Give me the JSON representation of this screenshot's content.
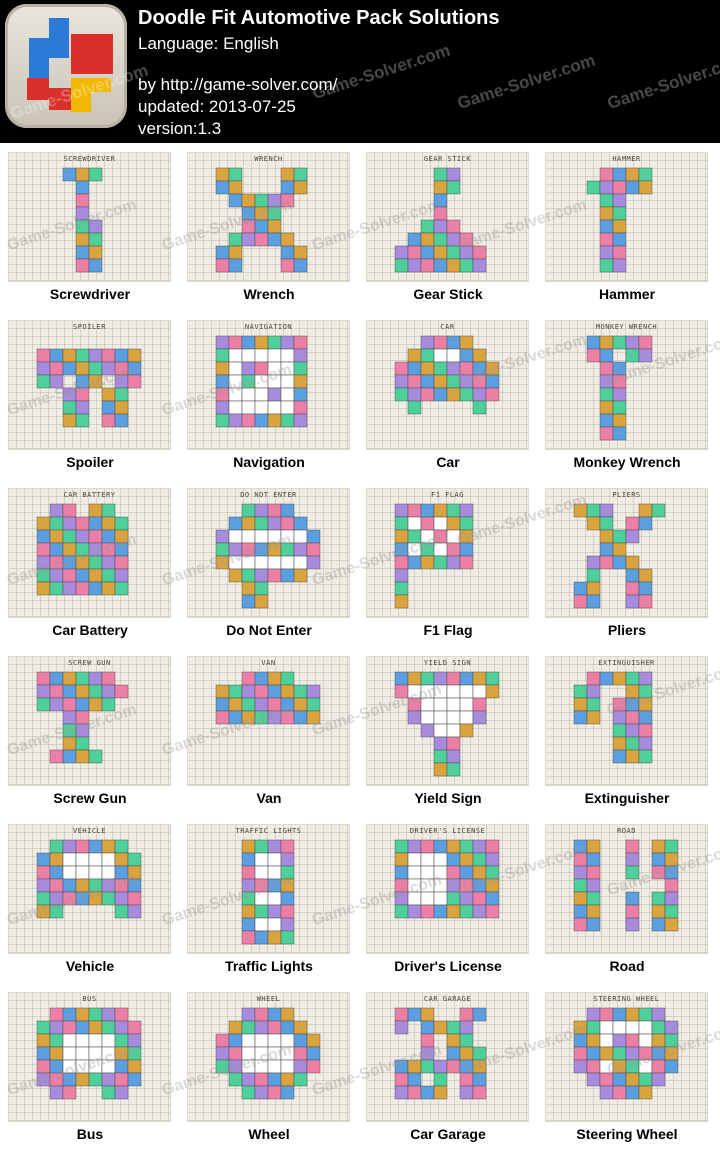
{
  "header": {
    "title": "Doodle Fit Automotive Pack Solutions",
    "language": "Language: English",
    "by": "by http://game-solver.com/",
    "updated": "updated: 2013-07-25",
    "version": "version:1.3",
    "watermark": "Game-Solver.com"
  },
  "colors": {
    "purple": "#a78bdc",
    "orange": "#d9a33f",
    "pink": "#ec7fa6",
    "green": "#4fcf9a",
    "blue": "#5b9fe0",
    "paper": "#efece3",
    "hole": "#ffffff"
  },
  "puzzles": [
    {
      "label": "Screwdriver",
      "inner_title": "SCREWDRIVER"
    },
    {
      "label": "Wrench",
      "inner_title": "WRENCH"
    },
    {
      "label": "Gear Stick",
      "inner_title": "GEAR STICK"
    },
    {
      "label": "Hammer",
      "inner_title": "HAMMER"
    },
    {
      "label": "Spoiler",
      "inner_title": "SPOILER"
    },
    {
      "label": "Navigation",
      "inner_title": "NAVIGATION"
    },
    {
      "label": "Car",
      "inner_title": "CAR"
    },
    {
      "label": "Monkey Wrench",
      "inner_title": "MONKEY WRENCH"
    },
    {
      "label": "Car Battery",
      "inner_title": "CAR BATTERY"
    },
    {
      "label": "Do Not Enter",
      "inner_title": "DO NOT ENTER"
    },
    {
      "label": "F1 Flag",
      "inner_title": "F1 FLAG"
    },
    {
      "label": "Pliers",
      "inner_title": "PLIERS"
    },
    {
      "label": "Screw Gun",
      "inner_title": "SCREW GUN"
    },
    {
      "label": "Van",
      "inner_title": "VAN"
    },
    {
      "label": "Yield Sign",
      "inner_title": "YIELD SIGN"
    },
    {
      "label": "Extinguisher",
      "inner_title": "EXTINGUISHER"
    },
    {
      "label": "Vehicle",
      "inner_title": "VEHICLE"
    },
    {
      "label": "Traffic Lights",
      "inner_title": "TRAFFIC LIGHTS"
    },
    {
      "label": "Driver's License",
      "inner_title": "DRIVER'S LICENSE"
    },
    {
      "label": "Road",
      "inner_title": "ROAD"
    },
    {
      "label": "Bus",
      "inner_title": "BUS"
    },
    {
      "label": "Wheel",
      "inner_title": "WHEEL"
    },
    {
      "label": "Car Garage",
      "inner_title": "CAR GARAGE"
    },
    {
      "label": "Steering Wheel",
      "inner_title": "STEERING WHEEL"
    }
  ]
}
